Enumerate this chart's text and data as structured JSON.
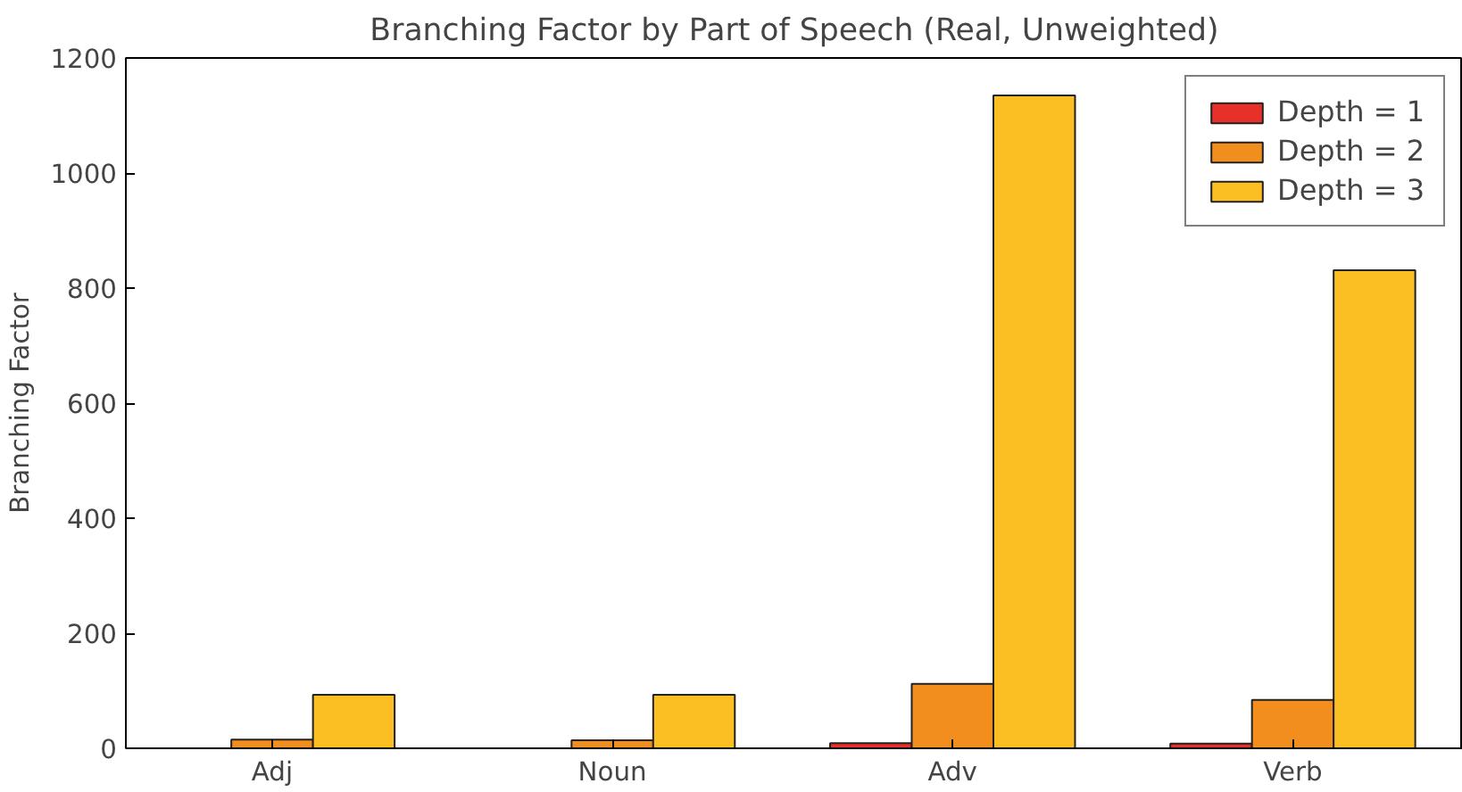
{
  "chart_data": {
    "type": "bar",
    "title": "Branching Factor by Part of Speech (Real, Unweighted)",
    "ylabel": "Branching Factor",
    "categories": [
      "Adj",
      "Noun",
      "Adv",
      "Verb"
    ],
    "series": [
      {
        "name": "Depth = 1",
        "color": "#e8302a",
        "values": [
          null,
          null,
          9,
          8
        ]
      },
      {
        "name": "Depth = 2",
        "color": "#f28e1e",
        "values": [
          15,
          14,
          112,
          84
        ]
      },
      {
        "name": "Depth = 3",
        "color": "#fbbf24",
        "values": [
          93,
          93,
          1135,
          831
        ]
      }
    ],
    "ylim": [
      0,
      1200
    ],
    "yticks": [
      0,
      200,
      400,
      600,
      800,
      1000,
      1200
    ],
    "grid": false,
    "legend": "top right"
  }
}
